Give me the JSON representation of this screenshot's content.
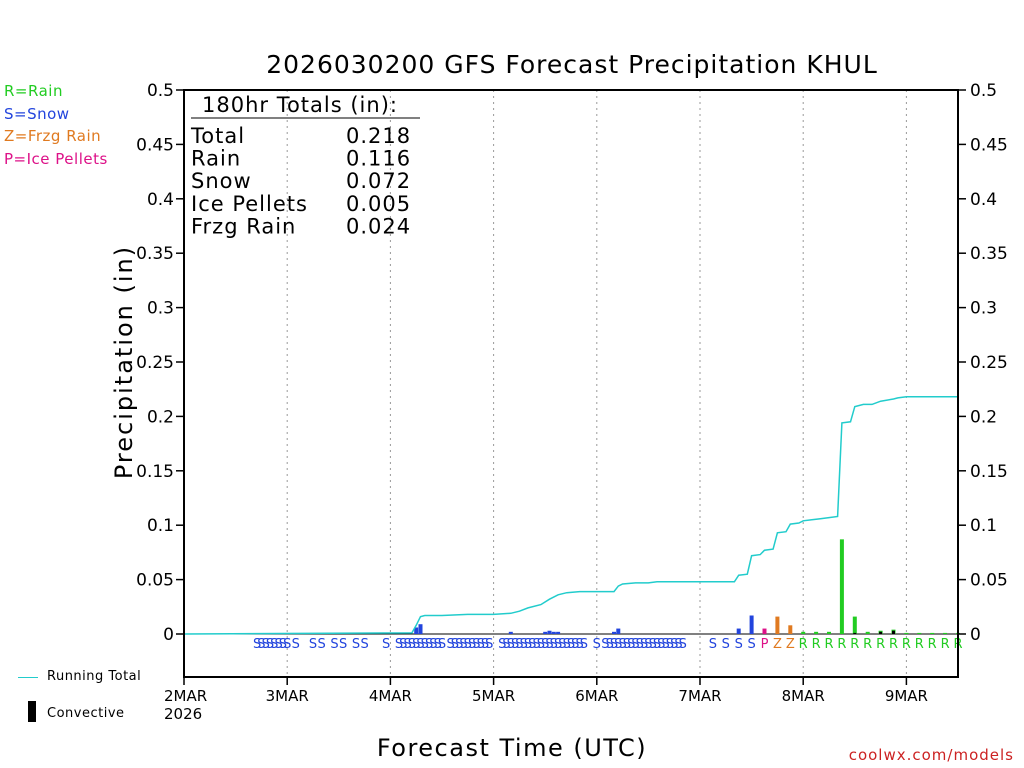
{
  "colors": {
    "rain": "#22cc22",
    "snow": "#2244dd",
    "frzg_rain": "#e07a20",
    "ice_pellets": "#dd1188",
    "running_total": "#22cccc",
    "convective": "#000000",
    "credit": "#cc2222",
    "grid": "#999999"
  },
  "legend": {
    "ptypes": [
      {
        "code": "R",
        "text": "R=Rain",
        "color": "#22cc22"
      },
      {
        "code": "S",
        "text": "S=Snow",
        "color": "#2244dd"
      },
      {
        "code": "Z",
        "text": "Z=Frzg Rain",
        "color": "#e07a20"
      },
      {
        "code": "P",
        "text": "P=Ice Pellets",
        "color": "#dd1188"
      }
    ],
    "running_total": "Running Total",
    "convective": "Convective"
  },
  "credit": "coolwx.com/models",
  "chart_data": {
    "type": "bar",
    "title": "2026030200 GFS Forecast Precipitation KHUL",
    "xlabel": "Forecast Time (UTC)",
    "ylabel": "Precipitation (in)",
    "ylim": [
      0,
      0.5
    ],
    "ylim_display_min": -0.04,
    "x_unit": "hours from 2026030200",
    "xlim": [
      0,
      180
    ],
    "yticks": [
      "0",
      "0.05",
      "0.1",
      "0.15",
      "0.2",
      "0.25",
      "0.3",
      "0.35",
      "0.4",
      "0.45",
      "0.5"
    ],
    "xticks": [
      {
        "hour": 0,
        "label": "2MAR",
        "sub": "2026"
      },
      {
        "hour": 24,
        "label": "3MAR"
      },
      {
        "hour": 48,
        "label": "4MAR"
      },
      {
        "hour": 72,
        "label": "5MAR"
      },
      {
        "hour": 96,
        "label": "6MAR"
      },
      {
        "hour": 120,
        "label": "7MAR"
      },
      {
        "hour": 144,
        "label": "8MAR"
      },
      {
        "hour": 168,
        "label": "9MAR"
      }
    ],
    "totals": {
      "heading": "180hr Totals (in):",
      "rows": [
        {
          "label": "Total",
          "value": "0.218"
        },
        {
          "label": "Rain",
          "value": "0.116"
        },
        {
          "label": "Snow",
          "value": "0.072"
        },
        {
          "label": "Ice Pellets",
          "value": "0.005"
        },
        {
          "label": "Frzg Rain",
          "value": "0.024"
        }
      ]
    },
    "bars": [
      {
        "hour": 54,
        "value": 0.006,
        "type": "S"
      },
      {
        "hour": 55,
        "value": 0.009,
        "type": "S"
      },
      {
        "hour": 76,
        "value": 0.002,
        "type": "S"
      },
      {
        "hour": 84,
        "value": 0.002,
        "type": "S"
      },
      {
        "hour": 85,
        "value": 0.003,
        "type": "S"
      },
      {
        "hour": 86,
        "value": 0.002,
        "type": "S"
      },
      {
        "hour": 87,
        "value": 0.002,
        "type": "S"
      },
      {
        "hour": 100,
        "value": 0.002,
        "type": "S"
      },
      {
        "hour": 101,
        "value": 0.005,
        "type": "S"
      },
      {
        "hour": 129,
        "value": 0.005,
        "type": "S"
      },
      {
        "hour": 132,
        "value": 0.017,
        "type": "S"
      },
      {
        "hour": 135,
        "value": 0.005,
        "type": "P"
      },
      {
        "hour": 138,
        "value": 0.016,
        "type": "Z"
      },
      {
        "hour": 141,
        "value": 0.008,
        "type": "Z"
      },
      {
        "hour": 144,
        "value": 0.002,
        "type": "R"
      },
      {
        "hour": 147,
        "value": 0.002,
        "type": "R"
      },
      {
        "hour": 150,
        "value": 0.002,
        "type": "R"
      },
      {
        "hour": 153,
        "value": 0.087,
        "type": "R"
      },
      {
        "hour": 156,
        "value": 0.016,
        "type": "R"
      },
      {
        "hour": 159,
        "value": 0.002,
        "type": "R"
      },
      {
        "hour": 162,
        "value": 0.003,
        "type": "R"
      },
      {
        "hour": 165,
        "value": 0.004,
        "type": "R"
      },
      {
        "hour": 168,
        "value": 0.001,
        "type": "R"
      },
      {
        "hour": 171,
        "value": 0.001,
        "type": "R"
      },
      {
        "hour": 174,
        "value": 0.001,
        "type": "R"
      },
      {
        "hour": 177,
        "value": 0.001,
        "type": "R"
      },
      {
        "hour": 180,
        "value": 0.001,
        "type": "R"
      }
    ],
    "convective_bars": [
      {
        "hour": 156,
        "value": 0.001
      },
      {
        "hour": 162,
        "value": 0.002
      },
      {
        "hour": 165,
        "value": 0.003
      }
    ],
    "running_total": [
      [
        0,
        0
      ],
      [
        53,
        0.001
      ],
      [
        54,
        0.008
      ],
      [
        55,
        0.016
      ],
      [
        56,
        0.017
      ],
      [
        60,
        0.017
      ],
      [
        66,
        0.018
      ],
      [
        72,
        0.018
      ],
      [
        76,
        0.019
      ],
      [
        78,
        0.021
      ],
      [
        80,
        0.024
      ],
      [
        83,
        0.027
      ],
      [
        85,
        0.032
      ],
      [
        87,
        0.036
      ],
      [
        89,
        0.038
      ],
      [
        92,
        0.039
      ],
      [
        100,
        0.039
      ],
      [
        101,
        0.044
      ],
      [
        102,
        0.046
      ],
      [
        105,
        0.047
      ],
      [
        108,
        0.047
      ],
      [
        110,
        0.048
      ],
      [
        127,
        0.048
      ],
      [
        128,
        0.048
      ],
      [
        129,
        0.054
      ],
      [
        131,
        0.055
      ],
      [
        132,
        0.072
      ],
      [
        134,
        0.073
      ],
      [
        135,
        0.077
      ],
      [
        137,
        0.078
      ],
      [
        138,
        0.093
      ],
      [
        140,
        0.094
      ],
      [
        141,
        0.101
      ],
      [
        143,
        0.102
      ],
      [
        144,
        0.104
      ],
      [
        146,
        0.105
      ],
      [
        148,
        0.106
      ],
      [
        150,
        0.107
      ],
      [
        152,
        0.108
      ],
      [
        153,
        0.194
      ],
      [
        155,
        0.195
      ],
      [
        156,
        0.209
      ],
      [
        158,
        0.211
      ],
      [
        160,
        0.211
      ],
      [
        162,
        0.214
      ],
      [
        165,
        0.216
      ],
      [
        166,
        0.217
      ],
      [
        168,
        0.218
      ],
      [
        180,
        0.218
      ]
    ],
    "ptype_markers": [
      {
        "hour": 17,
        "type": "S"
      },
      {
        "hour": 18,
        "type": "S"
      },
      {
        "hour": 19,
        "type": "S"
      },
      {
        "hour": 20,
        "type": "S"
      },
      {
        "hour": 21,
        "type": "S"
      },
      {
        "hour": 22,
        "type": "S"
      },
      {
        "hour": 23,
        "type": "S"
      },
      {
        "hour": 24,
        "type": "S"
      },
      {
        "hour": 26,
        "type": "S"
      },
      {
        "hour": 30,
        "type": "S"
      },
      {
        "hour": 32,
        "type": "S"
      },
      {
        "hour": 35,
        "type": "S"
      },
      {
        "hour": 37,
        "type": "S"
      },
      {
        "hour": 40,
        "type": "S"
      },
      {
        "hour": 42,
        "type": "S"
      },
      {
        "hour": 47,
        "type": "S"
      },
      {
        "hour": 50,
        "type": "S"
      },
      {
        "hour": 51,
        "type": "S"
      },
      {
        "hour": 52,
        "type": "S"
      },
      {
        "hour": 53,
        "type": "S"
      },
      {
        "hour": 54,
        "type": "S"
      },
      {
        "hour": 55,
        "type": "S"
      },
      {
        "hour": 56,
        "type": "S"
      },
      {
        "hour": 57,
        "type": "S"
      },
      {
        "hour": 58,
        "type": "S"
      },
      {
        "hour": 59,
        "type": "S"
      },
      {
        "hour": 60,
        "type": "S"
      },
      {
        "hour": 62,
        "type": "S"
      },
      {
        "hour": 63,
        "type": "S"
      },
      {
        "hour": 64,
        "type": "S"
      },
      {
        "hour": 65,
        "type": "S"
      },
      {
        "hour": 66,
        "type": "S"
      },
      {
        "hour": 67,
        "type": "S"
      },
      {
        "hour": 68,
        "type": "S"
      },
      {
        "hour": 69,
        "type": "S"
      },
      {
        "hour": 70,
        "type": "S"
      },
      {
        "hour": 71,
        "type": "S"
      },
      {
        "hour": 74,
        "type": "S"
      },
      {
        "hour": 75,
        "type": "S"
      },
      {
        "hour": 76,
        "type": "S"
      },
      {
        "hour": 77,
        "type": "S"
      },
      {
        "hour": 78,
        "type": "S"
      },
      {
        "hour": 79,
        "type": "S"
      },
      {
        "hour": 80,
        "type": "S"
      },
      {
        "hour": 81,
        "type": "S"
      },
      {
        "hour": 82,
        "type": "S"
      },
      {
        "hour": 83,
        "type": "S"
      },
      {
        "hour": 84,
        "type": "S"
      },
      {
        "hour": 85,
        "type": "S"
      },
      {
        "hour": 86,
        "type": "S"
      },
      {
        "hour": 87,
        "type": "S"
      },
      {
        "hour": 88,
        "type": "S"
      },
      {
        "hour": 89,
        "type": "S"
      },
      {
        "hour": 90,
        "type": "S"
      },
      {
        "hour": 91,
        "type": "S"
      },
      {
        "hour": 92,
        "type": "S"
      },
      {
        "hour": 93,
        "type": "S"
      },
      {
        "hour": 96,
        "type": "S"
      },
      {
        "hour": 98,
        "type": "S"
      },
      {
        "hour": 99,
        "type": "S"
      },
      {
        "hour": 100,
        "type": "S"
      },
      {
        "hour": 101,
        "type": "S"
      },
      {
        "hour": 102,
        "type": "S"
      },
      {
        "hour": 103,
        "type": "S"
      },
      {
        "hour": 104,
        "type": "S"
      },
      {
        "hour": 105,
        "type": "S"
      },
      {
        "hour": 106,
        "type": "S"
      },
      {
        "hour": 107,
        "type": "S"
      },
      {
        "hour": 108,
        "type": "S"
      },
      {
        "hour": 109,
        "type": "S"
      },
      {
        "hour": 110,
        "type": "S"
      },
      {
        "hour": 111,
        "type": "S"
      },
      {
        "hour": 112,
        "type": "S"
      },
      {
        "hour": 113,
        "type": "S"
      },
      {
        "hour": 114,
        "type": "S"
      },
      {
        "hour": 115,
        "type": "S"
      },
      {
        "hour": 116,
        "type": "S"
      },
      {
        "hour": 123,
        "type": "S"
      },
      {
        "hour": 126,
        "type": "S"
      },
      {
        "hour": 129,
        "type": "S"
      },
      {
        "hour": 132,
        "type": "S"
      },
      {
        "hour": 135,
        "type": "P"
      },
      {
        "hour": 138,
        "type": "Z"
      },
      {
        "hour": 141,
        "type": "Z"
      },
      {
        "hour": 144,
        "type": "R"
      },
      {
        "hour": 147,
        "type": "R"
      },
      {
        "hour": 150,
        "type": "R"
      },
      {
        "hour": 153,
        "type": "R"
      },
      {
        "hour": 156,
        "type": "R"
      },
      {
        "hour": 159,
        "type": "R"
      },
      {
        "hour": 162,
        "type": "R"
      },
      {
        "hour": 165,
        "type": "R"
      },
      {
        "hour": 168,
        "type": "R"
      },
      {
        "hour": 171,
        "type": "R"
      },
      {
        "hour": 174,
        "type": "R"
      },
      {
        "hour": 177,
        "type": "R"
      },
      {
        "hour": 180,
        "type": "R"
      }
    ]
  }
}
